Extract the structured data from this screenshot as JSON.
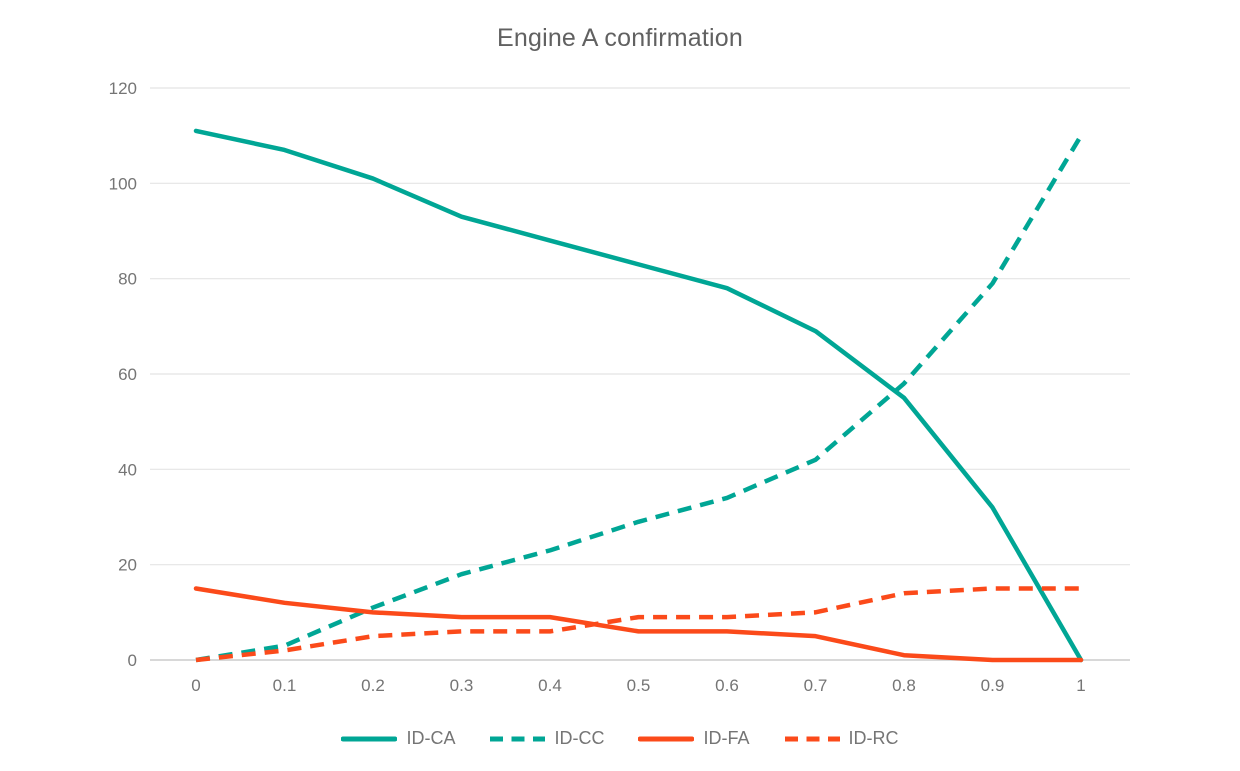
{
  "title": "Engine A confirmation",
  "colors": {
    "teal": "#00a695",
    "orange": "#fb4a1a",
    "grid": "#e4e4e4",
    "axis": "#cccccc",
    "tick_text": "#757575",
    "title_text": "#616161"
  },
  "chart_data": {
    "type": "line",
    "title": "Engine A confirmation",
    "xlabel": "",
    "ylabel": "",
    "x": [
      0,
      0.1,
      0.2,
      0.3,
      0.4,
      0.5,
      0.6,
      0.7,
      0.8,
      0.9,
      1
    ],
    "x_tick_labels": [
      "0",
      "0.1",
      "0.2",
      "0.3",
      "0.4",
      "0.5",
      "0.6",
      "0.7",
      "0.8",
      "0.9",
      "1"
    ],
    "xlim": [
      0,
      1
    ],
    "ylim": [
      0,
      120
    ],
    "y_ticks": [
      0,
      20,
      40,
      60,
      80,
      100,
      120
    ],
    "grid": "horizontal",
    "legend_position": "bottom",
    "series": [
      {
        "name": "ID-CA",
        "color": "#00a695",
        "dash": "solid",
        "values": [
          111,
          107,
          101,
          93,
          88,
          83,
          78,
          69,
          55,
          32,
          0
        ]
      },
      {
        "name": "ID-CC",
        "color": "#00a695",
        "dash": "dashed",
        "values": [
          0,
          3,
          11,
          18,
          23,
          29,
          34,
          42,
          58,
          79,
          110
        ]
      },
      {
        "name": "ID-FA",
        "color": "#fb4a1a",
        "dash": "solid",
        "values": [
          15,
          12,
          10,
          9,
          9,
          6,
          6,
          5,
          1,
          0,
          0
        ]
      },
      {
        "name": "ID-RC",
        "color": "#fb4a1a",
        "dash": "dashed",
        "values": [
          0,
          2,
          5,
          6,
          6,
          9,
          9,
          10,
          14,
          15,
          15
        ]
      }
    ]
  }
}
